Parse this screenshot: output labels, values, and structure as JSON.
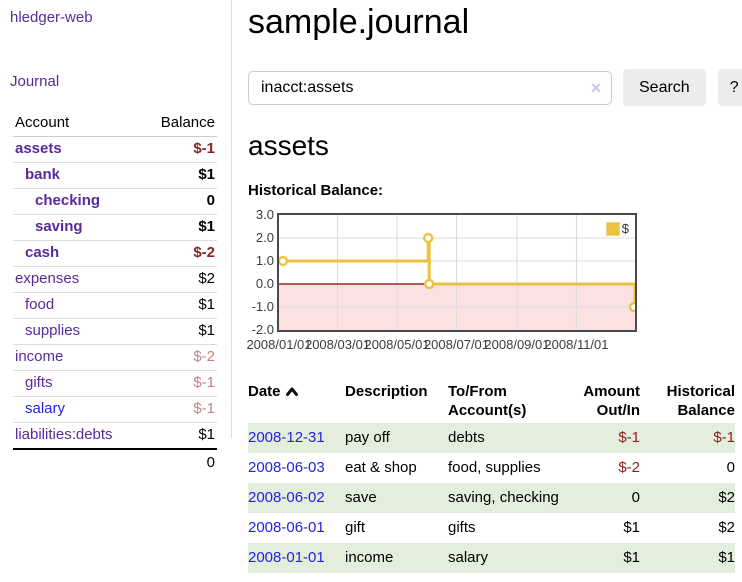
{
  "colors": {
    "link_purple": "#5b2a9a",
    "link_blue": "#2323dd",
    "negative_strong": "#8c2222",
    "negative_faint": "#c28585",
    "row_green": "#e3efdc",
    "chart_gold": "#edc240",
    "zero_line_red": "#8b0000",
    "negative_region_pink": "#fbe1e1",
    "grid_line": "#dcdcdc"
  },
  "sidebar": {
    "brand": "hledger-web",
    "nav": {
      "journal": "Journal"
    },
    "headers": {
      "account": "Account",
      "balance": "Balance"
    },
    "accounts": [
      {
        "name": "assets",
        "indent": 1,
        "bold": true,
        "blue": false,
        "balance": "$-1",
        "tone": "neg-strong"
      },
      {
        "name": "bank",
        "indent": 2,
        "bold": true,
        "blue": false,
        "balance": "$1",
        "tone": "plain"
      },
      {
        "name": "checking",
        "indent": 3,
        "bold": true,
        "blue": false,
        "balance": "0",
        "tone": "plain"
      },
      {
        "name": "saving",
        "indent": 3,
        "bold": true,
        "blue": false,
        "balance": "$1",
        "tone": "plain"
      },
      {
        "name": "cash",
        "indent": 2,
        "bold": true,
        "blue": false,
        "balance": "$-2",
        "tone": "neg-strong"
      },
      {
        "name": "expenses",
        "indent": 1,
        "bold": false,
        "blue": false,
        "balance": "$2",
        "tone": "plain"
      },
      {
        "name": "food",
        "indent": 2,
        "bold": false,
        "blue": false,
        "balance": "$1",
        "tone": "plain"
      },
      {
        "name": "supplies",
        "indent": 2,
        "bold": false,
        "blue": false,
        "balance": "$1",
        "tone": "plain"
      },
      {
        "name": "income",
        "indent": 1,
        "bold": false,
        "blue": false,
        "balance": "$-2",
        "tone": "neg-faint"
      },
      {
        "name": "gifts",
        "indent": 2,
        "bold": false,
        "blue": false,
        "balance": "$-1",
        "tone": "neg-faint"
      },
      {
        "name": "salary",
        "indent": 2,
        "bold": false,
        "blue": true,
        "balance": "$-1",
        "tone": "neg-faint"
      },
      {
        "name": "liabilities:debts",
        "indent": 1,
        "bold": false,
        "blue": false,
        "balance": "$1",
        "tone": "plain"
      }
    ],
    "total": "0"
  },
  "main": {
    "title": "sample.journal",
    "search": {
      "value": "inacct:assets",
      "clear_icon": "✕",
      "search_button": "Search",
      "help_button": "?"
    },
    "account_heading": "assets",
    "section_label": "Historical Balance:"
  },
  "chart_data": {
    "type": "line",
    "step": true,
    "title": "Historical Balance:",
    "x_range": [
      "2008/01/01",
      "2008/12/31"
    ],
    "ylim": [
      -2,
      3
    ],
    "y_ticks": [
      3.0,
      2.0,
      1.0,
      0.0,
      -1.0,
      -2.0
    ],
    "x_ticks": [
      "2008/01/01",
      "2008/03/01",
      "2008/05/01",
      "2008/07/01",
      "2008/09/01",
      "2008/11/01"
    ],
    "series": [
      {
        "name": "$",
        "color": "#edc240",
        "points": [
          {
            "date": "2008/01/01",
            "value": 1
          },
          {
            "date": "2008/06/02",
            "value": 2
          },
          {
            "date": "2008/06/03",
            "value": 0
          },
          {
            "date": "2008/12/31",
            "value": -1
          }
        ]
      }
    ],
    "legend_position": "top-right",
    "grid": true,
    "negative_region_shaded": true
  },
  "register": {
    "headers": [
      "Date",
      "Description",
      "To/From Account(s)",
      "Amount Out/In",
      "Historical Balance"
    ],
    "sort": {
      "column": "Date",
      "direction": "asc"
    },
    "rows": [
      {
        "date": "2008-12-31",
        "description": "pay off",
        "accounts": "debts",
        "amount": "$-1",
        "amount_negative": true,
        "balance": "$-1",
        "balance_negative": true
      },
      {
        "date": "2008-06-03",
        "description": "eat & shop",
        "accounts": "food, supplies",
        "amount": "$-2",
        "amount_negative": true,
        "balance": "0",
        "balance_negative": false
      },
      {
        "date": "2008-06-02",
        "description": "save",
        "accounts": "saving, checking",
        "amount": "0",
        "amount_negative": false,
        "balance": "$2",
        "balance_negative": false
      },
      {
        "date": "2008-06-01",
        "description": "gift",
        "accounts": "gifts",
        "amount": "$1",
        "amount_negative": false,
        "balance": "$2",
        "balance_negative": false
      },
      {
        "date": "2008-01-01",
        "description": "income",
        "accounts": "salary",
        "amount": "$1",
        "amount_negative": false,
        "balance": "$1",
        "balance_negative": false
      }
    ]
  }
}
